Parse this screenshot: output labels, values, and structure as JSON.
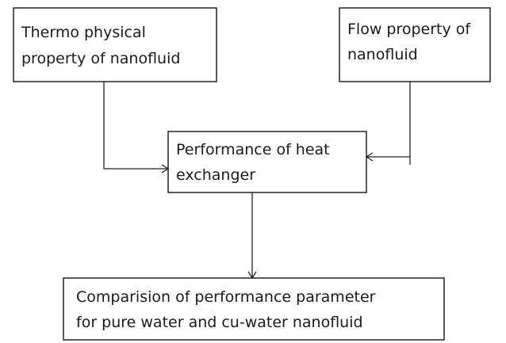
{
  "nodes": [
    {
      "lines": [
        "Thermo physical",
        "property of nanofluid"
      ]
    },
    {
      "lines": [
        "Flow property of",
        "nanofluid"
      ]
    },
    {
      "lines": [
        "Performance of heat",
        "exchanger"
      ]
    },
    {
      "lines": [
        "Comparision of performance parameter",
        "for pure water and cu-water nanofluid"
      ]
    }
  ]
}
